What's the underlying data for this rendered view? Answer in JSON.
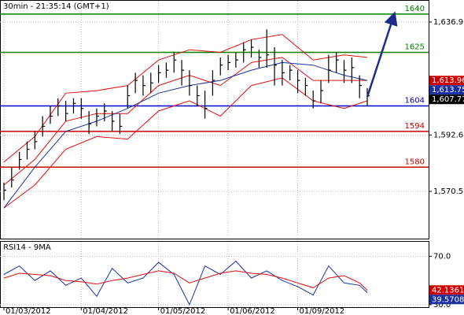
{
  "chart_data": [
    {
      "type": "ohlc",
      "title": "30min - 21:35:14 (GMT+1)",
      "x": [
        0,
        1,
        2,
        3,
        4,
        5,
        6,
        7,
        8,
        9,
        10,
        11,
        12,
        13,
        14,
        15,
        16,
        17,
        18,
        19,
        20,
        21,
        22,
        23,
        24,
        25,
        26,
        27,
        28,
        29,
        30,
        31,
        32,
        33,
        34,
        35,
        36,
        37,
        38,
        39,
        40,
        41,
        42,
        43,
        44,
        45,
        46,
        47
      ],
      "high": [
        1574,
        1580,
        1586,
        1590,
        1594,
        1600,
        1604,
        1607,
        1606,
        1607,
        1607,
        1602,
        1603,
        1605,
        1602,
        1601,
        1612,
        1617,
        1616,
        1617,
        1620,
        1621,
        1625,
        1622,
        1618,
        1612,
        1610,
        1618,
        1623,
        1624,
        1625,
        1629,
        1630,
        1626,
        1634,
        1627,
        1622,
        1620,
        1618,
        1615,
        1610,
        1614,
        1624,
        1625,
        1622,
        1623,
        1616,
        1611
      ],
      "low": [
        1567,
        1572,
        1579,
        1583,
        1587,
        1592,
        1597,
        1600,
        1598,
        1601,
        1599,
        1593,
        1596,
        1598,
        1594,
        1593,
        1603,
        1609,
        1608,
        1609,
        1613,
        1615,
        1617,
        1612,
        1608,
        1604,
        1599,
        1608,
        1616,
        1618,
        1619,
        1621,
        1623,
        1619,
        1619,
        1612,
        1612,
        1614,
        1609,
        1608,
        1603,
        1605,
        1613,
        1617,
        1613,
        1613,
        1607,
        1604
      ],
      "close": [
        1571,
        1575,
        1583,
        1587,
        1590,
        1596,
        1600,
        1604,
        1601,
        1605,
        1603,
        1597,
        1600,
        1602,
        1598,
        1596,
        1608,
        1614,
        1612,
        1613,
        1617,
        1618,
        1622,
        1618,
        1612,
        1608,
        1603,
        1614,
        1620,
        1621,
        1622,
        1626,
        1627,
        1623,
        1624,
        1620,
        1617,
        1618,
        1614,
        1612,
        1606,
        1610,
        1618,
        1622,
        1618,
        1619,
        1612,
        1608
      ],
      "color": "#000000",
      "series": [
        {
          "color": "#e01010",
          "x": [
            0,
            4,
            8,
            12,
            16,
            20,
            24,
            28,
            32,
            36,
            40,
            44,
            47
          ],
          "values": [
            1582,
            1592,
            1609,
            1610,
            1612,
            1622,
            1626,
            1625,
            1630,
            1632,
            1622,
            1624,
            1623
          ]
        },
        {
          "color": "#e01010",
          "x": [
            0,
            4,
            8,
            12,
            16,
            20,
            24,
            28,
            32,
            36,
            40,
            44,
            47
          ],
          "values": [
            1564,
            1573,
            1587,
            1592,
            1591,
            1602,
            1606,
            1600,
            1612,
            1615,
            1606,
            1603,
            1606
          ]
        },
        {
          "color": "#e01010",
          "x": [
            0,
            4,
            8,
            12,
            16,
            20,
            24,
            28,
            32,
            36,
            40,
            44,
            47
          ],
          "values": [
            1573,
            1583,
            1598,
            1601,
            1601,
            1612,
            1616,
            1612,
            1621,
            1623,
            1614,
            1614,
            1614
          ]
        },
        {
          "color": "#1a2fa0",
          "x": [
            0,
            4,
            8,
            12,
            16,
            20,
            24,
            28,
            32,
            36,
            40,
            44,
            47
          ],
          "values": [
            1564,
            1580,
            1594,
            1598,
            1603,
            1609,
            1612,
            1614,
            1618,
            1621,
            1620,
            1616,
            1614
          ]
        }
      ],
      "levels": {
        "values": [
          1640,
          1625,
          1604,
          1594,
          1580
        ],
        "colors": [
          "#008000",
          "#008000",
          "#0000cc",
          "#cc0000",
          "#cc0000"
        ]
      },
      "arrow": {
        "x": [
          47,
          50.5
        ],
        "values": [
          1607.5,
          1640
        ],
        "color": "#1c2b8c"
      },
      "price_tags": [
        {
          "value": 1613.96,
          "label": "1,613.96",
          "color": "#cc0000"
        },
        {
          "value": 1613.75,
          "label": "1,613.75",
          "color": "#1a2fa0"
        },
        {
          "value": 1607.77,
          "label": "1,607.77",
          "color": "#000000"
        }
      ],
      "ylim": [
        1552,
        1645.2
      ],
      "yticks": [
        {
          "value": 1636.9,
          "label": "1,636.9"
        },
        {
          "value": 1592.6,
          "label": "1,592.6"
        },
        {
          "value": 1570.5,
          "label": "1,570.5"
        }
      ],
      "grid": true
    },
    {
      "type": "line",
      "title": "RSI14 - 9MA",
      "series": [
        {
          "color": "#1a2fa0",
          "x": [
            0,
            2,
            4,
            6,
            8,
            10,
            12,
            14,
            16,
            18,
            20,
            22,
            24,
            26,
            28,
            30,
            32,
            34,
            36,
            38,
            40,
            42,
            44,
            46,
            47
          ],
          "values": [
            55,
            62,
            50,
            58,
            46,
            52,
            37,
            60,
            48,
            52,
            65,
            55,
            30,
            62,
            55,
            66,
            52,
            58,
            50,
            45,
            38,
            62,
            48,
            46,
            40
          ]
        },
        {
          "color": "#e01010",
          "x": [
            0,
            2,
            4,
            6,
            8,
            10,
            12,
            14,
            16,
            18,
            20,
            22,
            24,
            26,
            28,
            30,
            32,
            34,
            36,
            38,
            40,
            42,
            44,
            46,
            47
          ],
          "values": [
            52,
            56,
            55,
            54,
            50,
            49,
            47,
            50,
            52,
            55,
            58,
            56,
            48,
            52,
            56,
            58,
            56,
            55,
            52,
            48,
            44,
            52,
            54,
            48,
            42
          ]
        }
      ],
      "price_tags": [
        {
          "value": 42.1361,
          "label": "42.1361",
          "color": "#cc0000"
        },
        {
          "value": 39.5708,
          "label": "39.5708",
          "color": "#1a2fa0"
        }
      ],
      "ylim": [
        28,
        82
      ],
      "yticks": [
        {
          "value": 70,
          "label": "70.0"
        },
        {
          "value": 30,
          "label": "30.0"
        }
      ],
      "xticks": [
        {
          "value": 0,
          "label": "01/03/2012"
        },
        {
          "value": 10,
          "label": "01/04/2012"
        },
        {
          "value": 20,
          "label": "01/05/2012"
        },
        {
          "value": 29,
          "label": "01/06/2012"
        },
        {
          "value": 38,
          "label": "01/09/2012"
        }
      ],
      "grid": true
    }
  ]
}
